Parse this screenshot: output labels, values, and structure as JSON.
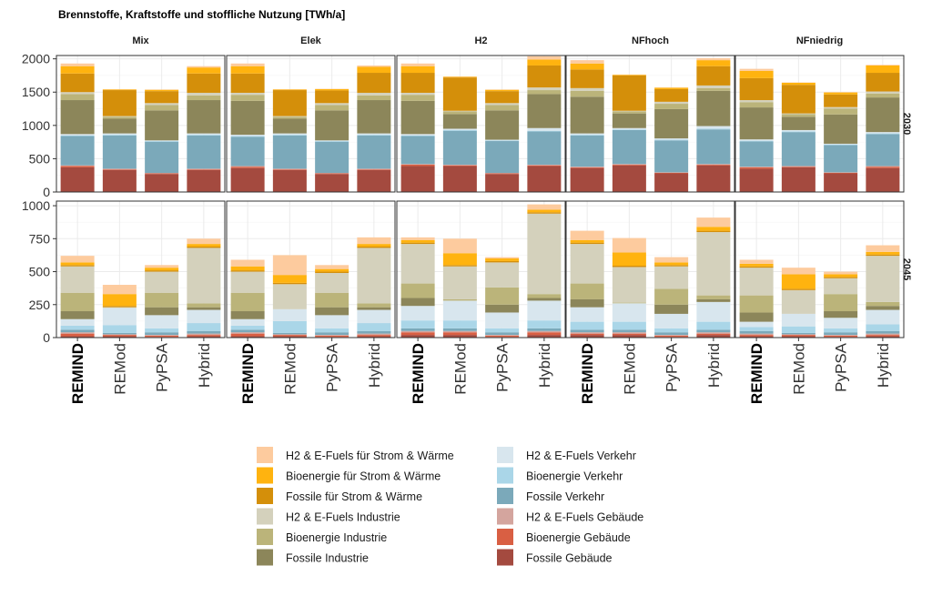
{
  "chart_data": {
    "type": "bar",
    "stacked": true,
    "title": "Brennstoffe, Kraftstoffe und stoffliche Nutzung [TWh/a]",
    "facet_columns": [
      "Mix",
      "Elek",
      "H2",
      "NFhoch",
      "NFniedrig"
    ],
    "facet_rows": [
      "2030",
      "2045"
    ],
    "categories": [
      "REMIND",
      "REMod",
      "PyPSA",
      "Hybrid"
    ],
    "bold_categories": [
      "REMIND"
    ],
    "ylim": {
      "2030": [
        0,
        2050
      ],
      "2045": [
        0,
        1035
      ]
    },
    "yticks": {
      "2030": [
        0,
        500,
        1000,
        1500,
        2000
      ],
      "2045": [
        0,
        250,
        500,
        750,
        1000
      ]
    },
    "grid": true,
    "legend_position": "bottom",
    "stack_order": [
      "Fossile Gebäude",
      "Bioenergie Gebäude",
      "H2 & E-Fuels Gebäude",
      "Fossile Verkehr",
      "Bioenergie Verkehr",
      "H2 & E-Fuels Verkehr",
      "Fossile Industrie",
      "Bioenergie Industrie",
      "H2 & E-Fuels Industrie",
      "Fossile für Strom & Wärme",
      "Bioenergie für Strom & Wärme",
      "H2 & E-Fuels für Strom & Wärme"
    ],
    "colors": {
      "Fossile Gebäude": "#A44A3F",
      "Bioenergie Gebäude": "#D95F43",
      "H2 & E-Fuels Gebäude": "#D4A59E",
      "Fossile Verkehr": "#7BA9BA",
      "Bioenergie Verkehr": "#AAD6E8",
      "H2 & E-Fuels Verkehr": "#D8E6EE",
      "Fossile Industrie": "#8C865A",
      "Bioenergie Industrie": "#BBB47A",
      "H2 & E-Fuels Industrie": "#D4D1BC",
      "Fossile für Strom & Wärme": "#D48F0A",
      "Bioenergie für Strom & Wärme": "#FFB30F",
      "H2 & E-Fuels für Strom & Wärme": "#FDCB9E"
    },
    "legend_columns": [
      [
        "H2 & E-Fuels für Strom & Wärme",
        "Bioenergie für Strom & Wärme",
        "Fossile für Strom & Wärme",
        "H2 & E-Fuels Industrie",
        "Bioenergie Industrie",
        "Fossile Industrie"
      ],
      [
        "H2 & E-Fuels Verkehr",
        "Bioenergie Verkehr",
        "Fossile Verkehr",
        "H2 & E-Fuels Gebäude",
        "Bioenergie Gebäude",
        "Fossile Gebäude"
      ]
    ],
    "values": {
      "2030": {
        "Mix": {
          "REMIND": [
            370,
            20,
            10,
            440,
            10,
            20,
            510,
            90,
            30,
            280,
            110,
            40
          ],
          "REMod": [
            330,
            10,
            10,
            500,
            10,
            20,
            220,
            30,
            10,
            390,
            10,
            5
          ],
          "PyPSA": [
            270,
            10,
            5,
            470,
            10,
            10,
            450,
            80,
            30,
            180,
            20,
            5
          ],
          "Hybrid": [
            330,
            10,
            10,
            500,
            10,
            20,
            500,
            70,
            40,
            290,
            90,
            20
          ]
        },
        "Elek": {
          "REMIND": [
            360,
            20,
            10,
            440,
            10,
            20,
            510,
            90,
            30,
            290,
            110,
            40
          ],
          "REMod": [
            330,
            10,
            10,
            500,
            10,
            20,
            220,
            30,
            10,
            390,
            10,
            5
          ],
          "PyPSA": [
            270,
            10,
            5,
            470,
            10,
            10,
            450,
            80,
            30,
            190,
            20,
            5
          ],
          "Hybrid": [
            330,
            10,
            10,
            500,
            10,
            20,
            500,
            70,
            40,
            300,
            90,
            20
          ]
        },
        "H2": {
          "REMIND": [
            390,
            20,
            10,
            420,
            10,
            20,
            500,
            90,
            30,
            300,
            100,
            40
          ],
          "REMod": [
            390,
            10,
            10,
            510,
            10,
            20,
            220,
            40,
            10,
            500,
            10,
            5
          ],
          "PyPSA": [
            270,
            10,
            5,
            480,
            10,
            10,
            440,
            80,
            30,
            180,
            20,
            5
          ],
          "Hybrid": [
            390,
            10,
            10,
            500,
            10,
            40,
            510,
            60,
            40,
            330,
            90,
            50
          ]
        },
        "NFhoch": {
          "REMIND": [
            360,
            10,
            10,
            470,
            10,
            20,
            550,
            90,
            40,
            280,
            90,
            50
          ],
          "REMod": [
            400,
            10,
            10,
            510,
            10,
            20,
            220,
            30,
            10,
            530,
            10,
            5
          ],
          "PyPSA": [
            280,
            10,
            5,
            480,
            10,
            20,
            440,
            80,
            30,
            190,
            20,
            5
          ],
          "Hybrid": [
            400,
            10,
            10,
            520,
            10,
            40,
            530,
            40,
            40,
            290,
            90,
            30
          ]
        },
        "NFniedrig": {
          "REMIND": [
            350,
            20,
            10,
            380,
            10,
            20,
            480,
            80,
            30,
            330,
            110,
            30
          ],
          "REMod": [
            370,
            10,
            10,
            510,
            10,
            20,
            200,
            40,
            10,
            430,
            30,
            5
          ],
          "PyPSA": [
            280,
            10,
            5,
            410,
            10,
            10,
            440,
            90,
            20,
            190,
            30,
            5
          ],
          "Hybrid": [
            360,
            20,
            10,
            480,
            10,
            20,
            520,
            60,
            30,
            280,
            110,
            10
          ]
        }
      },
      "2045": {
        "Mix": {
          "REMIND": [
            10,
            20,
            10,
            20,
            30,
            50,
            60,
            140,
            200,
            10,
            20,
            50
          ],
          "REMod": [
            10,
            10,
            5,
            10,
            60,
            130,
            0,
            0,
            5,
            10,
            90,
            70
          ],
          "PyPSA": [
            5,
            10,
            5,
            20,
            30,
            100,
            60,
            110,
            160,
            10,
            20,
            20
          ],
          "Hybrid": [
            10,
            10,
            10,
            20,
            60,
            100,
            20,
            30,
            420,
            10,
            20,
            40
          ]
        },
        "Elek": {
          "REMIND": [
            10,
            20,
            10,
            20,
            30,
            50,
            60,
            140,
            160,
            10,
            30,
            50
          ],
          "REMod": [
            10,
            10,
            5,
            10,
            90,
            90,
            0,
            0,
            190,
            10,
            60,
            150
          ],
          "PyPSA": [
            5,
            10,
            5,
            20,
            30,
            100,
            60,
            110,
            150,
            10,
            20,
            30
          ],
          "Hybrid": [
            10,
            10,
            10,
            20,
            60,
            100,
            20,
            30,
            420,
            10,
            20,
            50
          ]
        },
        "H2": {
          "REMIND": [
            20,
            20,
            10,
            20,
            60,
            110,
            60,
            110,
            300,
            10,
            20,
            20
          ],
          "REMod": [
            20,
            20,
            10,
            20,
            60,
            150,
            0,
            10,
            250,
            10,
            90,
            110
          ],
          "PyPSA": [
            5,
            10,
            5,
            20,
            30,
            120,
            60,
            130,
            190,
            10,
            20,
            10
          ],
          "Hybrid": [
            20,
            20,
            10,
            20,
            60,
            150,
            20,
            30,
            610,
            10,
            20,
            40
          ]
        },
        "NFhoch": {
          "REMIND": [
            20,
            10,
            10,
            20,
            60,
            110,
            60,
            120,
            300,
            10,
            20,
            70
          ],
          "REMod": [
            20,
            10,
            10,
            20,
            60,
            140,
            0,
            5,
            270,
            10,
            100,
            110
          ],
          "PyPSA": [
            5,
            10,
            5,
            20,
            30,
            110,
            70,
            120,
            170,
            10,
            20,
            40
          ],
          "Hybrid": [
            20,
            10,
            10,
            20,
            60,
            150,
            20,
            30,
            480,
            10,
            30,
            70
          ]
        },
        "NFniedrig": {
          "REMIND": [
            10,
            10,
            10,
            20,
            30,
            40,
            70,
            130,
            210,
            10,
            20,
            30
          ],
          "REMod": [
            10,
            10,
            5,
            10,
            50,
            95,
            0,
            0,
            180,
            10,
            110,
            50
          ],
          "PyPSA": [
            5,
            10,
            5,
            20,
            30,
            80,
            50,
            130,
            120,
            10,
            20,
            20
          ],
          "Hybrid": [
            10,
            10,
            10,
            20,
            50,
            110,
            30,
            30,
            350,
            10,
            20,
            50
          ]
        }
      }
    }
  }
}
